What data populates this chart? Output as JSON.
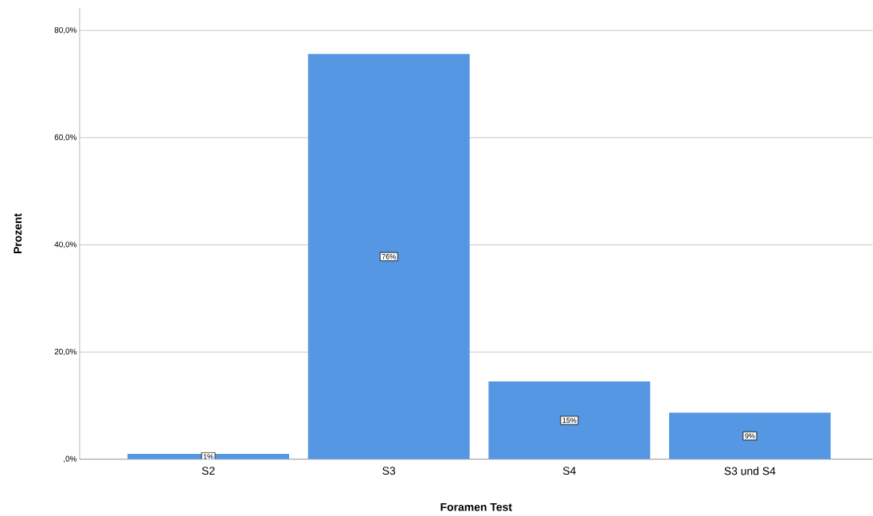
{
  "chart_data": {
    "type": "bar",
    "xlabel": "Foramen Test",
    "ylabel": "Prozent",
    "categories": [
      "S2",
      "S3",
      "S4",
      "S3 und S4"
    ],
    "values": [
      1.0,
      75.6,
      14.5,
      8.7
    ],
    "value_labels": [
      "1%",
      "76%",
      "15%",
      "9%"
    ],
    "color": "#5597e3",
    "ylim": [
      0,
      84.2
    ],
    "yticks": [
      {
        "value": 0,
        "label": ",0%"
      },
      {
        "value": 20,
        "label": "20,0%"
      },
      {
        "value": 40,
        "label": "40,0%"
      },
      {
        "value": 60,
        "label": "60,0%"
      },
      {
        "value": 80,
        "label": "80,0%"
      }
    ],
    "grid": "y"
  }
}
